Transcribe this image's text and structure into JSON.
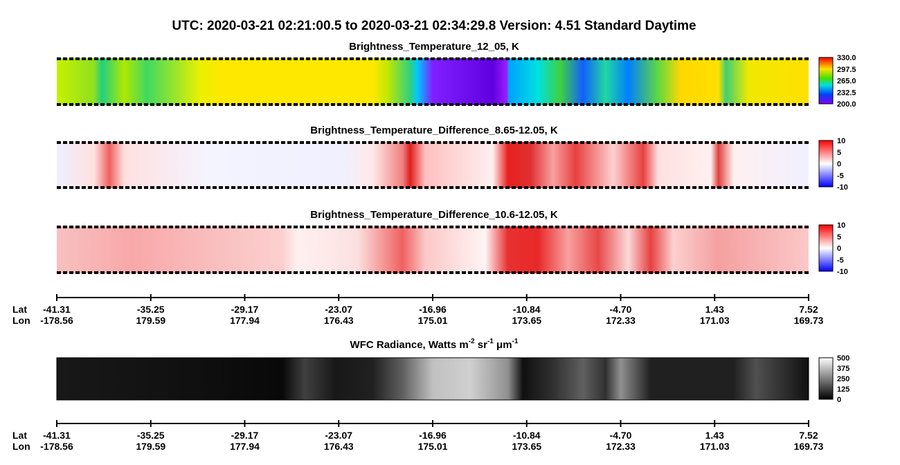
{
  "title": "UTC:  2020-03-21   02:21:00.5  to  2020-03-21   02:34:29.8    Version: 4.51  Standard Daytime",
  "panels": [
    {
      "title": "Brightness_Temperature_12_05, K",
      "colorbar": [
        "330.0",
        "297.5",
        "265.0",
        "232.5",
        "200.0"
      ]
    },
    {
      "title": "Brightness_Temperature_Difference_8.65-12.05, K",
      "colorbar": [
        "10",
        "5",
        "0",
        "-5",
        "-10"
      ]
    },
    {
      "title": "Brightness_Temperature_Difference_10.6-12.05, K",
      "colorbar": [
        "10",
        "5",
        "0",
        "-5",
        "-10"
      ]
    },
    {
      "title_parts": [
        "WFC Radiance, Watts m",
        "-2",
        " sr",
        "-1",
        " μm",
        "-1"
      ],
      "colorbar": [
        "500",
        "375",
        "250",
        "125",
        "0"
      ]
    }
  ],
  "axis": {
    "lat_label": "Lat",
    "lon_label": "Lon",
    "lat": [
      "-41.31",
      "-35.25",
      "-29.17",
      "-23.07",
      "-16.96",
      "-10.84",
      "-4.70",
      "1.43",
      "7.52"
    ],
    "lon": [
      "-178.56",
      "179.59",
      "177.94",
      "176.43",
      "175.01",
      "173.65",
      "172.33",
      "171.03",
      "169.73"
    ]
  }
}
